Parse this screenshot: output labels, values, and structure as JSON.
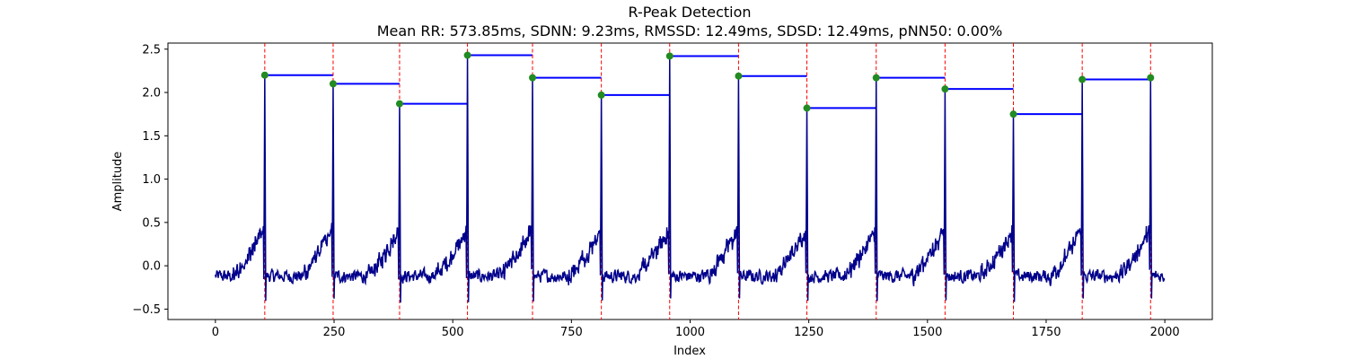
{
  "chart_data": {
    "type": "line",
    "title": "R-Peak Detection",
    "subtitle": "Mean RR: 573.85ms, SDNN: 9.23ms, RMSSD: 12.49ms, SDSD: 12.49ms, pNN50: 0.00%",
    "xlabel": "Index",
    "ylabel": "Amplitude",
    "xlim": [
      -100,
      2100
    ],
    "ylim": [
      -0.62,
      2.57
    ],
    "x_ticks": [
      0,
      250,
      500,
      750,
      1000,
      1250,
      1500,
      1750,
      2000
    ],
    "x_tick_labels": [
      "0",
      "250",
      "500",
      "750",
      "1000",
      "1250",
      "1500",
      "1750",
      "2000"
    ],
    "y_ticks": [
      -0.5,
      0.0,
      0.5,
      1.0,
      1.5,
      2.0,
      2.5
    ],
    "y_tick_labels": [
      "−0.5",
      "0.0",
      "0.5",
      "1.0",
      "1.5",
      "2.0",
      "2.5"
    ],
    "grid": false,
    "signal": {
      "color": "#00008b",
      "n_points": 2000,
      "baseline_noise": 0.07,
      "pre_peak_amplitude": 0.55,
      "post_peak_dip": -0.4
    },
    "r_peaks": [
      {
        "x": 104,
        "y": 2.2
      },
      {
        "x": 248,
        "y": 2.1
      },
      {
        "x": 388,
        "y": 1.87
      },
      {
        "x": 531,
        "y": 2.43
      },
      {
        "x": 668,
        "y": 2.17
      },
      {
        "x": 813,
        "y": 1.97
      },
      {
        "x": 957,
        "y": 2.42
      },
      {
        "x": 1102,
        "y": 2.19
      },
      {
        "x": 1246,
        "y": 1.82
      },
      {
        "x": 1392,
        "y": 2.17
      },
      {
        "x": 1537,
        "y": 2.04
      },
      {
        "x": 1681,
        "y": 1.75
      },
      {
        "x": 1826,
        "y": 2.15
      },
      {
        "x": 1970,
        "y": 2.17
      }
    ],
    "markers": {
      "peak_color": "#228b22",
      "vline_color": "#ff0000",
      "rr_line_color": "#0000ff"
    }
  }
}
